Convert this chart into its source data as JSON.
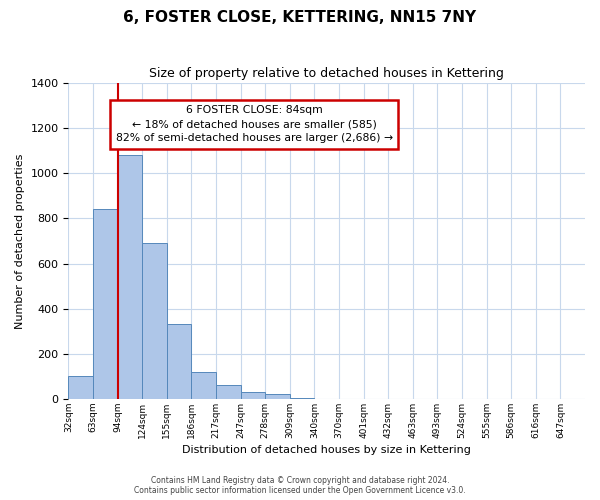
{
  "title": "6, FOSTER CLOSE, KETTERING, NN15 7NY",
  "subtitle": "Size of property relative to detached houses in Kettering",
  "xlabel": "Distribution of detached houses by size in Kettering",
  "ylabel": "Number of detached properties",
  "bin_labels": [
    "32sqm",
    "63sqm",
    "94sqm",
    "124sqm",
    "155sqm",
    "186sqm",
    "217sqm",
    "247sqm",
    "278sqm",
    "309sqm",
    "340sqm",
    "370sqm",
    "401sqm",
    "432sqm",
    "463sqm",
    "493sqm",
    "524sqm",
    "555sqm",
    "586sqm",
    "616sqm",
    "647sqm"
  ],
  "bar_values": [
    100,
    840,
    1080,
    690,
    330,
    120,
    60,
    30,
    20,
    5,
    0,
    0,
    0,
    0,
    0,
    0,
    0,
    0,
    0,
    0
  ],
  "bar_color": "#aec6e8",
  "bar_edge_color": "#5588bb",
  "vline_x": 2.0,
  "vline_color": "#cc0000",
  "ylim": [
    0,
    1400
  ],
  "yticks": [
    0,
    200,
    400,
    600,
    800,
    1000,
    1200,
    1400
  ],
  "annotation_box_text": "6 FOSTER CLOSE: 84sqm\n← 18% of detached houses are smaller (585)\n82% of semi-detached houses are larger (2,686) →",
  "annotation_box_color": "#cc0000",
  "footer_line1": "Contains HM Land Registry data © Crown copyright and database right 2024.",
  "footer_line2": "Contains public sector information licensed under the Open Government Licence v3.0.",
  "background_color": "#ffffff",
  "grid_color": "#c8d8ec"
}
